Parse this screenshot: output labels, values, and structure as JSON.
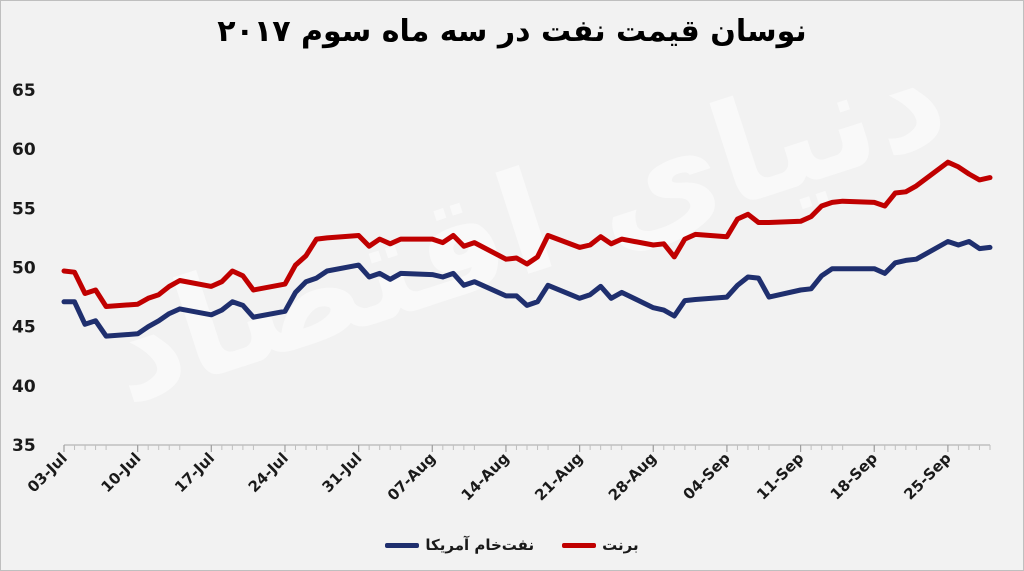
{
  "chart_data": {
    "type": "line",
    "title": "نوسان قیمت نفت در سه ماه سوم ۲۰۱۷",
    "watermark": "دنیای اقتصاد",
    "ylim": [
      35,
      65
    ],
    "yticks": [
      35,
      40,
      45,
      50,
      55,
      60,
      65
    ],
    "xtick_labels": [
      "03-Jul",
      "10-Jul",
      "17-Jul",
      "24-Jul",
      "31-Jul",
      "07-Aug",
      "14-Aug",
      "21-Aug",
      "28-Aug",
      "04-Sep",
      "11-Sep",
      "18-Sep",
      "25-Sep"
    ],
    "grid": false,
    "legend_position": "bottom",
    "x": [
      "2017-07-03",
      "2017-07-04",
      "2017-07-05",
      "2017-07-06",
      "2017-07-07",
      "2017-07-10",
      "2017-07-11",
      "2017-07-12",
      "2017-07-13",
      "2017-07-14",
      "2017-07-17",
      "2017-07-18",
      "2017-07-19",
      "2017-07-20",
      "2017-07-21",
      "2017-07-24",
      "2017-07-25",
      "2017-07-26",
      "2017-07-27",
      "2017-07-28",
      "2017-07-31",
      "2017-08-01",
      "2017-08-02",
      "2017-08-03",
      "2017-08-04",
      "2017-08-07",
      "2017-08-08",
      "2017-08-09",
      "2017-08-10",
      "2017-08-11",
      "2017-08-14",
      "2017-08-15",
      "2017-08-16",
      "2017-08-17",
      "2017-08-18",
      "2017-08-21",
      "2017-08-22",
      "2017-08-23",
      "2017-08-24",
      "2017-08-25",
      "2017-08-28",
      "2017-08-29",
      "2017-08-30",
      "2017-08-31",
      "2017-09-01",
      "2017-09-04",
      "2017-09-05",
      "2017-09-06",
      "2017-09-07",
      "2017-09-08",
      "2017-09-11",
      "2017-09-12",
      "2017-09-13",
      "2017-09-14",
      "2017-09-15",
      "2017-09-18",
      "2017-09-19",
      "2017-09-20",
      "2017-09-21",
      "2017-09-22",
      "2017-09-25",
      "2017-09-26",
      "2017-09-27",
      "2017-09-28",
      "2017-09-29"
    ],
    "series": [
      {
        "name": "نفت‌خام آمریکا",
        "color": "#1f2f6e",
        "values": [
          47.1,
          47.1,
          45.2,
          45.5,
          44.2,
          44.4,
          45.0,
          45.5,
          46.1,
          46.5,
          46.0,
          46.4,
          47.1,
          46.8,
          45.8,
          46.3,
          47.9,
          48.8,
          49.1,
          49.7,
          50.2,
          49.2,
          49.5,
          49.0,
          49.5,
          49.4,
          49.2,
          49.5,
          48.5,
          48.8,
          47.6,
          47.6,
          46.8,
          47.1,
          48.5,
          47.4,
          47.7,
          48.4,
          47.4,
          47.9,
          46.6,
          46.4,
          45.9,
          47.2,
          47.3,
          47.5,
          48.5,
          49.2,
          49.1,
          47.5,
          48.1,
          48.2,
          49.3,
          49.9,
          49.9,
          49.9,
          49.5,
          50.4,
          50.6,
          50.7,
          52.2,
          51.9,
          52.2,
          51.6,
          51.7
        ]
      },
      {
        "name": "برنت",
        "color": "#c00000",
        "values": [
          49.7,
          49.6,
          47.8,
          48.1,
          46.7,
          46.9,
          47.4,
          47.7,
          48.4,
          48.9,
          48.4,
          48.8,
          49.7,
          49.3,
          48.1,
          48.6,
          50.2,
          51.0,
          52.4,
          52.5,
          52.7,
          51.8,
          52.4,
          52.0,
          52.4,
          52.4,
          52.1,
          52.7,
          51.8,
          52.1,
          50.7,
          50.8,
          50.3,
          50.9,
          52.7,
          51.7,
          51.9,
          52.6,
          52.0,
          52.4,
          51.9,
          52.0,
          50.9,
          52.4,
          52.8,
          52.6,
          54.1,
          54.5,
          53.8,
          53.8,
          53.9,
          54.3,
          55.2,
          55.5,
          55.6,
          55.5,
          55.2,
          56.3,
          56.4,
          56.9,
          58.9,
          58.5,
          57.9,
          57.4,
          57.6
        ]
      }
    ]
  }
}
